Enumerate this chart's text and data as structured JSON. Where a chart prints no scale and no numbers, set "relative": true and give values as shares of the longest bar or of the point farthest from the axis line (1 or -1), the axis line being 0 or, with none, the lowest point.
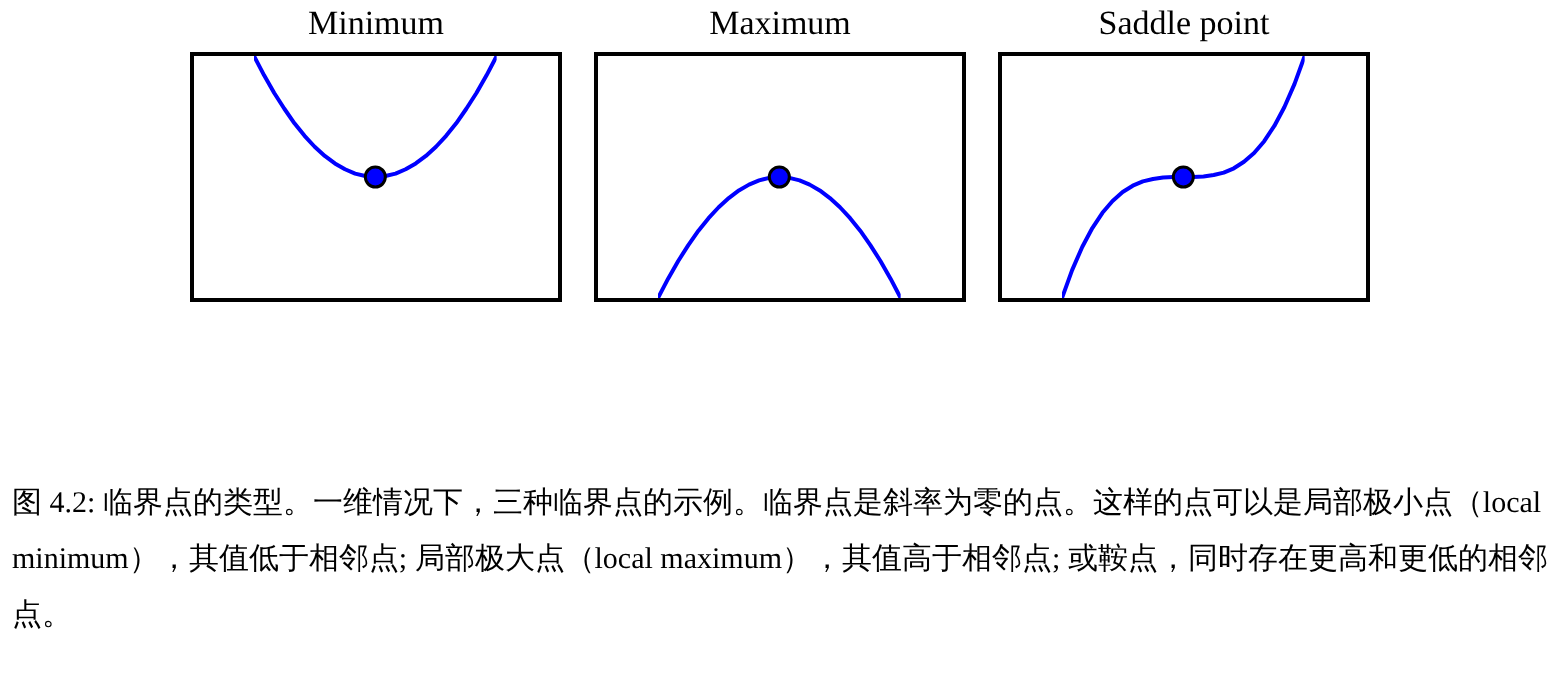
{
  "chart_data": [
    {
      "type": "line",
      "title": "Minimum",
      "relative": true,
      "categories": [
        null,
        null,
        null,
        null,
        null,
        null,
        null,
        null,
        null,
        null,
        null,
        null,
        null,
        null,
        null,
        null,
        null,
        null,
        null,
        null,
        null,
        null,
        null,
        null,
        null
      ],
      "series": [
        {
          "color": "#0000ff",
          "values": [
            1,
            0.92,
            0.847,
            0.782,
            0.722,
            0.67,
            0.625,
            0.587,
            0.556,
            0.532,
            0.514,
            0.504,
            0.5,
            0.504,
            0.514,
            0.532,
            0.556,
            0.587,
            0.625,
            0.67,
            0.722,
            0.782,
            0.847,
            0.92,
            1
          ]
        }
      ]
    },
    {
      "type": "line",
      "title": "Maximum",
      "relative": true,
      "categories": [
        null,
        null,
        null,
        null,
        null,
        null,
        null,
        null,
        null,
        null,
        null,
        null,
        null,
        null,
        null,
        null,
        null,
        null,
        null,
        null,
        null,
        null,
        null,
        null,
        null
      ],
      "series": [
        {
          "color": "#0000ff",
          "values": [
            0,
            0.16,
            0.306,
            0.437,
            0.556,
            0.66,
            0.75,
            0.826,
            0.889,
            0.937,
            0.972,
            0.993,
            1,
            0.993,
            0.972,
            0.937,
            0.889,
            0.826,
            0.75,
            0.66,
            0.556,
            0.437,
            0.306,
            0.16,
            0
          ]
        }
      ]
    },
    {
      "type": "line",
      "title": "Saddle point",
      "relative": true,
      "categories": [
        null,
        null,
        null,
        null,
        null,
        null,
        null,
        null,
        null,
        null,
        null,
        null,
        null,
        null,
        null,
        null,
        null,
        null,
        null,
        null,
        null,
        null,
        null,
        null,
        null
      ],
      "series": [
        {
          "color": "#0000ff",
          "values": [
            0,
            0.115,
            0.211,
            0.289,
            0.352,
            0.401,
            0.438,
            0.464,
            0.482,
            0.492,
            0.498,
            0.5,
            0.5,
            0.5,
            0.502,
            0.508,
            0.518,
            0.536,
            0.563,
            0.599,
            0.648,
            0.711,
            0.789,
            0.885,
            1
          ]
        }
      ],
      "annotations": [
        "图 4.2: 临界点的类型。一维情况下，三种临界点的示例。临界点是斜率为零的点。这样的点可以是局部极小点（local minimum），其值低于相邻点; 局部极大点（local maximum），其值高于相邻点; 或鞍点，同时存在更高和更低的相邻点。"
      ]
    }
  ]
}
